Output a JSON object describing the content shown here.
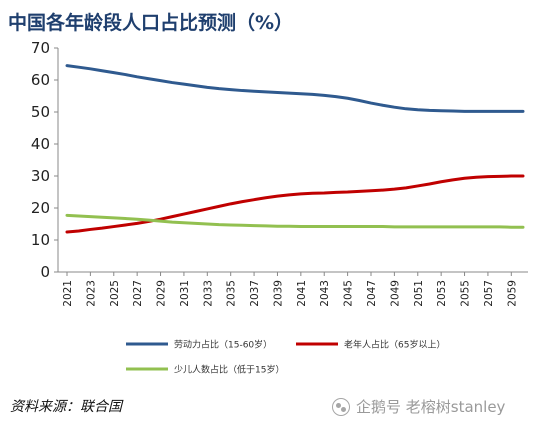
{
  "title": "中国各年龄段人口占比预测（%）",
  "source": "资料来源：联合国",
  "watermark": {
    "text": "企鹅号 老榕树stanley",
    "icon": "penguin-logo-icon"
  },
  "chart_data": {
    "type": "line",
    "title": "中国各年龄段人口占比预测（%）",
    "xlabel": "",
    "ylabel": "",
    "x": [
      2021,
      2022,
      2023,
      2024,
      2025,
      2026,
      2027,
      2028,
      2029,
      2030,
      2031,
      2032,
      2033,
      2034,
      2035,
      2036,
      2037,
      2038,
      2039,
      2040,
      2041,
      2042,
      2043,
      2044,
      2045,
      2046,
      2047,
      2048,
      2049,
      2050,
      2051,
      2052,
      2053,
      2054,
      2055,
      2056,
      2057,
      2058,
      2059,
      2060
    ],
    "xticks": [
      2021,
      2023,
      2025,
      2027,
      2029,
      2031,
      2033,
      2035,
      2037,
      2039,
      2041,
      2043,
      2045,
      2047,
      2049,
      2051,
      2053,
      2055,
      2057,
      2059
    ],
    "ylim": [
      0,
      70
    ],
    "yticks": [
      0,
      10,
      20,
      30,
      40,
      50,
      60,
      70
    ],
    "grid": false,
    "legend_position": "bottom",
    "series": [
      {
        "name": "劳动力占比（15-60岁）",
        "color": "#2f5a8f",
        "values": [
          64.5,
          64.0,
          63.5,
          62.9,
          62.3,
          61.7,
          61.0,
          60.4,
          59.8,
          59.2,
          58.7,
          58.2,
          57.7,
          57.3,
          57.0,
          56.7,
          56.5,
          56.3,
          56.1,
          55.9,
          55.7,
          55.5,
          55.2,
          54.8,
          54.3,
          53.6,
          52.8,
          52.1,
          51.5,
          51.0,
          50.7,
          50.5,
          50.4,
          50.3,
          50.2,
          50.2,
          50.2,
          50.2,
          50.2,
          50.2
        ]
      },
      {
        "name": "老年人占比（65岁以上）",
        "color": "#c00000",
        "values": [
          12.5,
          12.8,
          13.3,
          13.7,
          14.2,
          14.7,
          15.2,
          15.8,
          16.5,
          17.3,
          18.1,
          18.9,
          19.7,
          20.5,
          21.3,
          22.0,
          22.6,
          23.2,
          23.7,
          24.1,
          24.4,
          24.6,
          24.7,
          24.9,
          25.0,
          25.2,
          25.4,
          25.6,
          25.9,
          26.3,
          26.9,
          27.5,
          28.2,
          28.8,
          29.3,
          29.6,
          29.8,
          29.9,
          30.0,
          30.0
        ]
      },
      {
        "name": "少儿人数占比（低于15岁）",
        "color": "#92c050",
        "values": [
          17.7,
          17.5,
          17.3,
          17.1,
          16.9,
          16.7,
          16.5,
          16.2,
          15.9,
          15.6,
          15.4,
          15.2,
          15.0,
          14.8,
          14.7,
          14.6,
          14.5,
          14.4,
          14.3,
          14.3,
          14.2,
          14.2,
          14.2,
          14.2,
          14.2,
          14.2,
          14.2,
          14.2,
          14.1,
          14.1,
          14.1,
          14.1,
          14.1,
          14.1,
          14.1,
          14.1,
          14.1,
          14.1,
          14.0,
          14.0
        ]
      }
    ]
  }
}
